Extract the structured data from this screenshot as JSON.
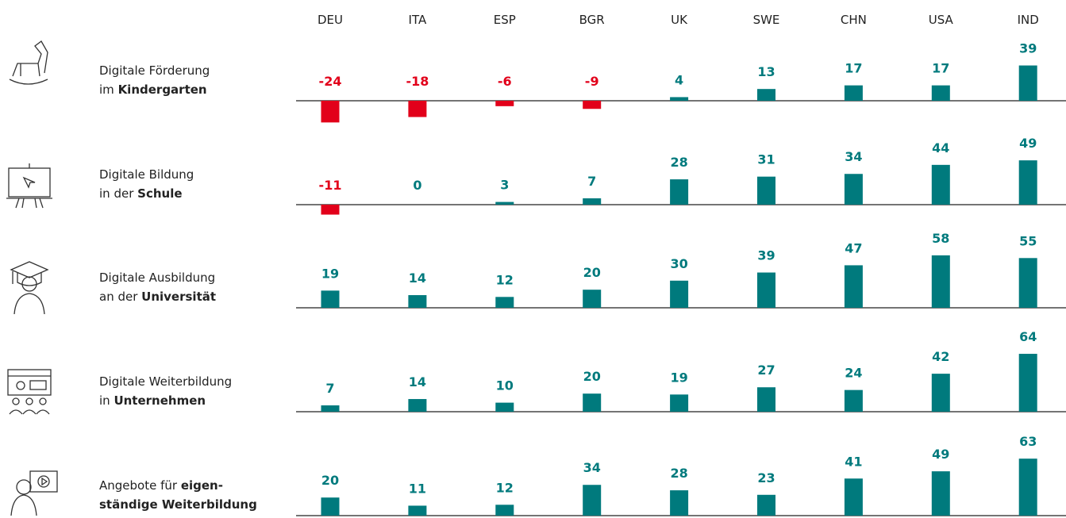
{
  "chart_data": {
    "type": "bar",
    "categories": [
      "DEU",
      "ITA",
      "ESP",
      "BGR",
      "UK",
      "SWE",
      "CHN",
      "USA",
      "IND"
    ],
    "color": "#007a7d",
    "negative_color": "#e2001a",
    "series": [
      {
        "label": [
          [
            {
              "text": "Digitale Förderung"
            }
          ],
          [
            {
              "text": "im "
            },
            {
              "text": "Kindergarten",
              "bold": true
            }
          ]
        ],
        "values": [
          -24,
          -18,
          -6,
          -9,
          4,
          13,
          17,
          17,
          39
        ]
      },
      {
        "label": [
          [
            {
              "text": "Digitale Bildung"
            }
          ],
          [
            {
              "text": "in der "
            },
            {
              "text": "Schule",
              "bold": true
            }
          ]
        ],
        "values": [
          -11,
          0,
          3,
          7,
          28,
          31,
          34,
          44,
          49
        ]
      },
      {
        "label": [
          [
            {
              "text": "Digitale Ausbildung"
            }
          ],
          [
            {
              "text": "an der "
            },
            {
              "text": "Universität",
              "bold": true
            }
          ]
        ],
        "values": [
          19,
          14,
          12,
          20,
          30,
          39,
          47,
          58,
          55
        ]
      },
      {
        "label": [
          [
            {
              "text": "Digitale Weiterbildung"
            }
          ],
          [
            {
              "text": "in "
            },
            {
              "text": "Unternehmen",
              "bold": true
            }
          ]
        ],
        "values": [
          7,
          14,
          10,
          20,
          19,
          27,
          24,
          42,
          64
        ]
      },
      {
        "label": [
          [
            {
              "text": "Angebote für "
            },
            {
              "text": "eigen-",
              "bold": true
            }
          ],
          [
            {
              "text": "ständige Weiterbildung",
              "bold": true
            }
          ]
        ],
        "values": [
          20,
          11,
          12,
          34,
          28,
          23,
          41,
          49,
          63
        ]
      }
    ]
  }
}
